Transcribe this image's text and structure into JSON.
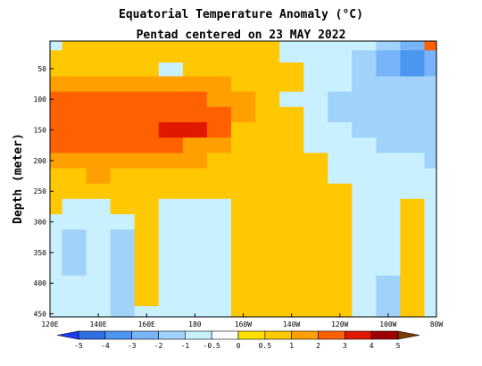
{
  "chart_data": {
    "type": "heatmap",
    "title": "Equatorial Temperature Anomaly (°C)",
    "subtitle": "Pentad centered on 23 MAY 2022",
    "xlabel": "",
    "ylabel": "Depth (meter)",
    "x_ticks": [
      "120E",
      "140E",
      "160E",
      "180",
      "160W",
      "140W",
      "120W",
      "100W",
      "80W"
    ],
    "x_range": [
      120,
      280
    ],
    "y_ticks": [
      "50",
      "100",
      "150",
      "200",
      "250",
      "300",
      "350",
      "400",
      "450"
    ],
    "y_range": [
      5,
      455
    ],
    "y_inverted": true,
    "colorbar": {
      "labels": [
        "-5",
        "-4",
        "-3",
        "-2",
        "-1",
        "-0.5",
        "0",
        "0.5",
        "1",
        "2",
        "3",
        "4",
        "5"
      ],
      "colors": [
        "#1e3cff",
        "#2d6ee0",
        "#4a96f0",
        "#78b4fa",
        "#a0d2fa",
        "#c8f0ff",
        "#ffffff",
        "#ffe000",
        "#ffc800",
        "#ffa000",
        "#ff6000",
        "#e01800",
        "#a00000",
        "#7a3c00"
      ]
    },
    "anomaly_values": {
      "x_lon_east": [
        120,
        130,
        140,
        150,
        160,
        170,
        180,
        190,
        200,
        210,
        220,
        230,
        240,
        250,
        260,
        270,
        280
      ],
      "y_depth_m": [
        10,
        30,
        50,
        75,
        100,
        125,
        150,
        175,
        200,
        225,
        250,
        275,
        300,
        325,
        350,
        375,
        400,
        425,
        450
      ],
      "z": [
        [
          -0.6,
          0.6,
          0.6,
          0.6,
          0.6,
          0.6,
          0.6,
          0.6,
          0.6,
          0.6,
          -0.6,
          -0.6,
          -0.6,
          -0.6,
          -1.5,
          -2.5,
          2.5
        ],
        [
          0.6,
          0.6,
          0.6,
          0.6,
          0.6,
          0.6,
          0.6,
          0.6,
          0.6,
          0.6,
          -0.6,
          -0.6,
          -0.6,
          -1.2,
          -2.5,
          -3.5,
          -2.5
        ],
        [
          0.6,
          0.8,
          0.8,
          0.8,
          0.6,
          -0.6,
          0.6,
          0.6,
          0.6,
          0.6,
          0.6,
          -0.6,
          -0.6,
          -1.2,
          -2.2,
          -3.2,
          -2.2
        ],
        [
          1.5,
          1.5,
          1.5,
          1.5,
          1.5,
          1.2,
          1.2,
          1.2,
          0.8,
          0.6,
          0.6,
          -0.6,
          -0.6,
          -1.2,
          -1.5,
          -1.5,
          -1.5
        ],
        [
          2.5,
          2.2,
          2.2,
          2.2,
          2.2,
          2.0,
          2.0,
          1.5,
          1.2,
          0.6,
          -0.6,
          -0.6,
          -1.2,
          -1.2,
          -1.2,
          -1.2,
          -1.2
        ],
        [
          2.7,
          2.5,
          2.5,
          2.7,
          2.7,
          2.7,
          2.7,
          2.5,
          1.5,
          0.6,
          0.6,
          -0.6,
          -1.2,
          -1.2,
          -1.2,
          -1.2,
          -1.2
        ],
        [
          2.5,
          2.5,
          2.2,
          2.5,
          2.7,
          3.2,
          3.2,
          2.0,
          0.8,
          0.6,
          0.6,
          -0.6,
          -0.6,
          -1.2,
          -1.2,
          -1.2,
          -1.2
        ],
        [
          2.2,
          2.2,
          2.2,
          2.2,
          2.2,
          2.0,
          1.5,
          1.2,
          0.6,
          0.6,
          0.6,
          -0.6,
          -0.6,
          -0.6,
          -1.2,
          -1.2,
          -1.2
        ],
        [
          1.5,
          1.5,
          1.5,
          1.5,
          1.5,
          1.2,
          1.2,
          0.6,
          0.6,
          0.6,
          0.6,
          0.6,
          -0.6,
          -0.6,
          -0.6,
          -0.6,
          -1.2
        ],
        [
          0.6,
          0.8,
          1.2,
          0.8,
          0.6,
          0.6,
          0.6,
          0.6,
          0.6,
          0.6,
          0.6,
          0.6,
          -0.6,
          -0.6,
          -0.6,
          -0.6,
          -0.6
        ],
        [
          0.6,
          0.6,
          0.6,
          0.6,
          0.6,
          0.6,
          0.6,
          0.6,
          0.6,
          0.6,
          0.6,
          0.6,
          0.6,
          -0.6,
          -0.6,
          -0.6,
          -0.6
        ],
        [
          0.6,
          -0.6,
          -0.6,
          0.6,
          0.6,
          -0.6,
          -0.6,
          -0.6,
          0.6,
          0.6,
          0.6,
          0.6,
          0.6,
          -0.6,
          -0.6,
          0.6,
          -0.6
        ],
        [
          -0.6,
          -0.6,
          -0.6,
          -0.6,
          0.6,
          -0.6,
          -0.6,
          -0.6,
          0.6,
          0.6,
          0.6,
          0.6,
          0.6,
          -0.6,
          -0.6,
          0.6,
          -0.6
        ],
        [
          -0.6,
          -1.2,
          -0.6,
          -1.2,
          0.6,
          -0.6,
          -0.6,
          -0.6,
          0.6,
          0.6,
          0.6,
          0.6,
          0.6,
          -0.6,
          -0.6,
          0.6,
          -0.6
        ],
        [
          -0.6,
          -1.2,
          -0.6,
          -1.2,
          0.6,
          -0.6,
          -0.6,
          -0.6,
          0.6,
          0.6,
          0.6,
          0.6,
          0.6,
          -0.6,
          -0.6,
          0.6,
          -0.6
        ],
        [
          -0.6,
          -1.2,
          -0.6,
          -1.2,
          0.6,
          -0.6,
          -0.6,
          -0.6,
          0.6,
          0.6,
          0.6,
          0.6,
          0.6,
          -0.6,
          -0.6,
          0.6,
          -0.6
        ],
        [
          -0.6,
          -0.6,
          -0.6,
          -1.2,
          0.6,
          -0.6,
          -0.6,
          -0.6,
          0.6,
          0.6,
          0.6,
          0.6,
          0.6,
          -0.6,
          -1.2,
          0.6,
          -0.6
        ],
        [
          -0.6,
          -0.6,
          -0.6,
          -1.2,
          0.6,
          -0.6,
          -0.6,
          -0.6,
          0.6,
          0.6,
          0.6,
          0.6,
          0.6,
          -0.6,
          -1.2,
          0.6,
          -0.6
        ],
        [
          -0.6,
          -0.6,
          -0.6,
          -1.2,
          -0.6,
          -0.6,
          -0.6,
          -0.6,
          0.6,
          0.6,
          0.6,
          0.6,
          0.6,
          -0.6,
          -1.2,
          0.6,
          -0.6
        ]
      ]
    }
  }
}
